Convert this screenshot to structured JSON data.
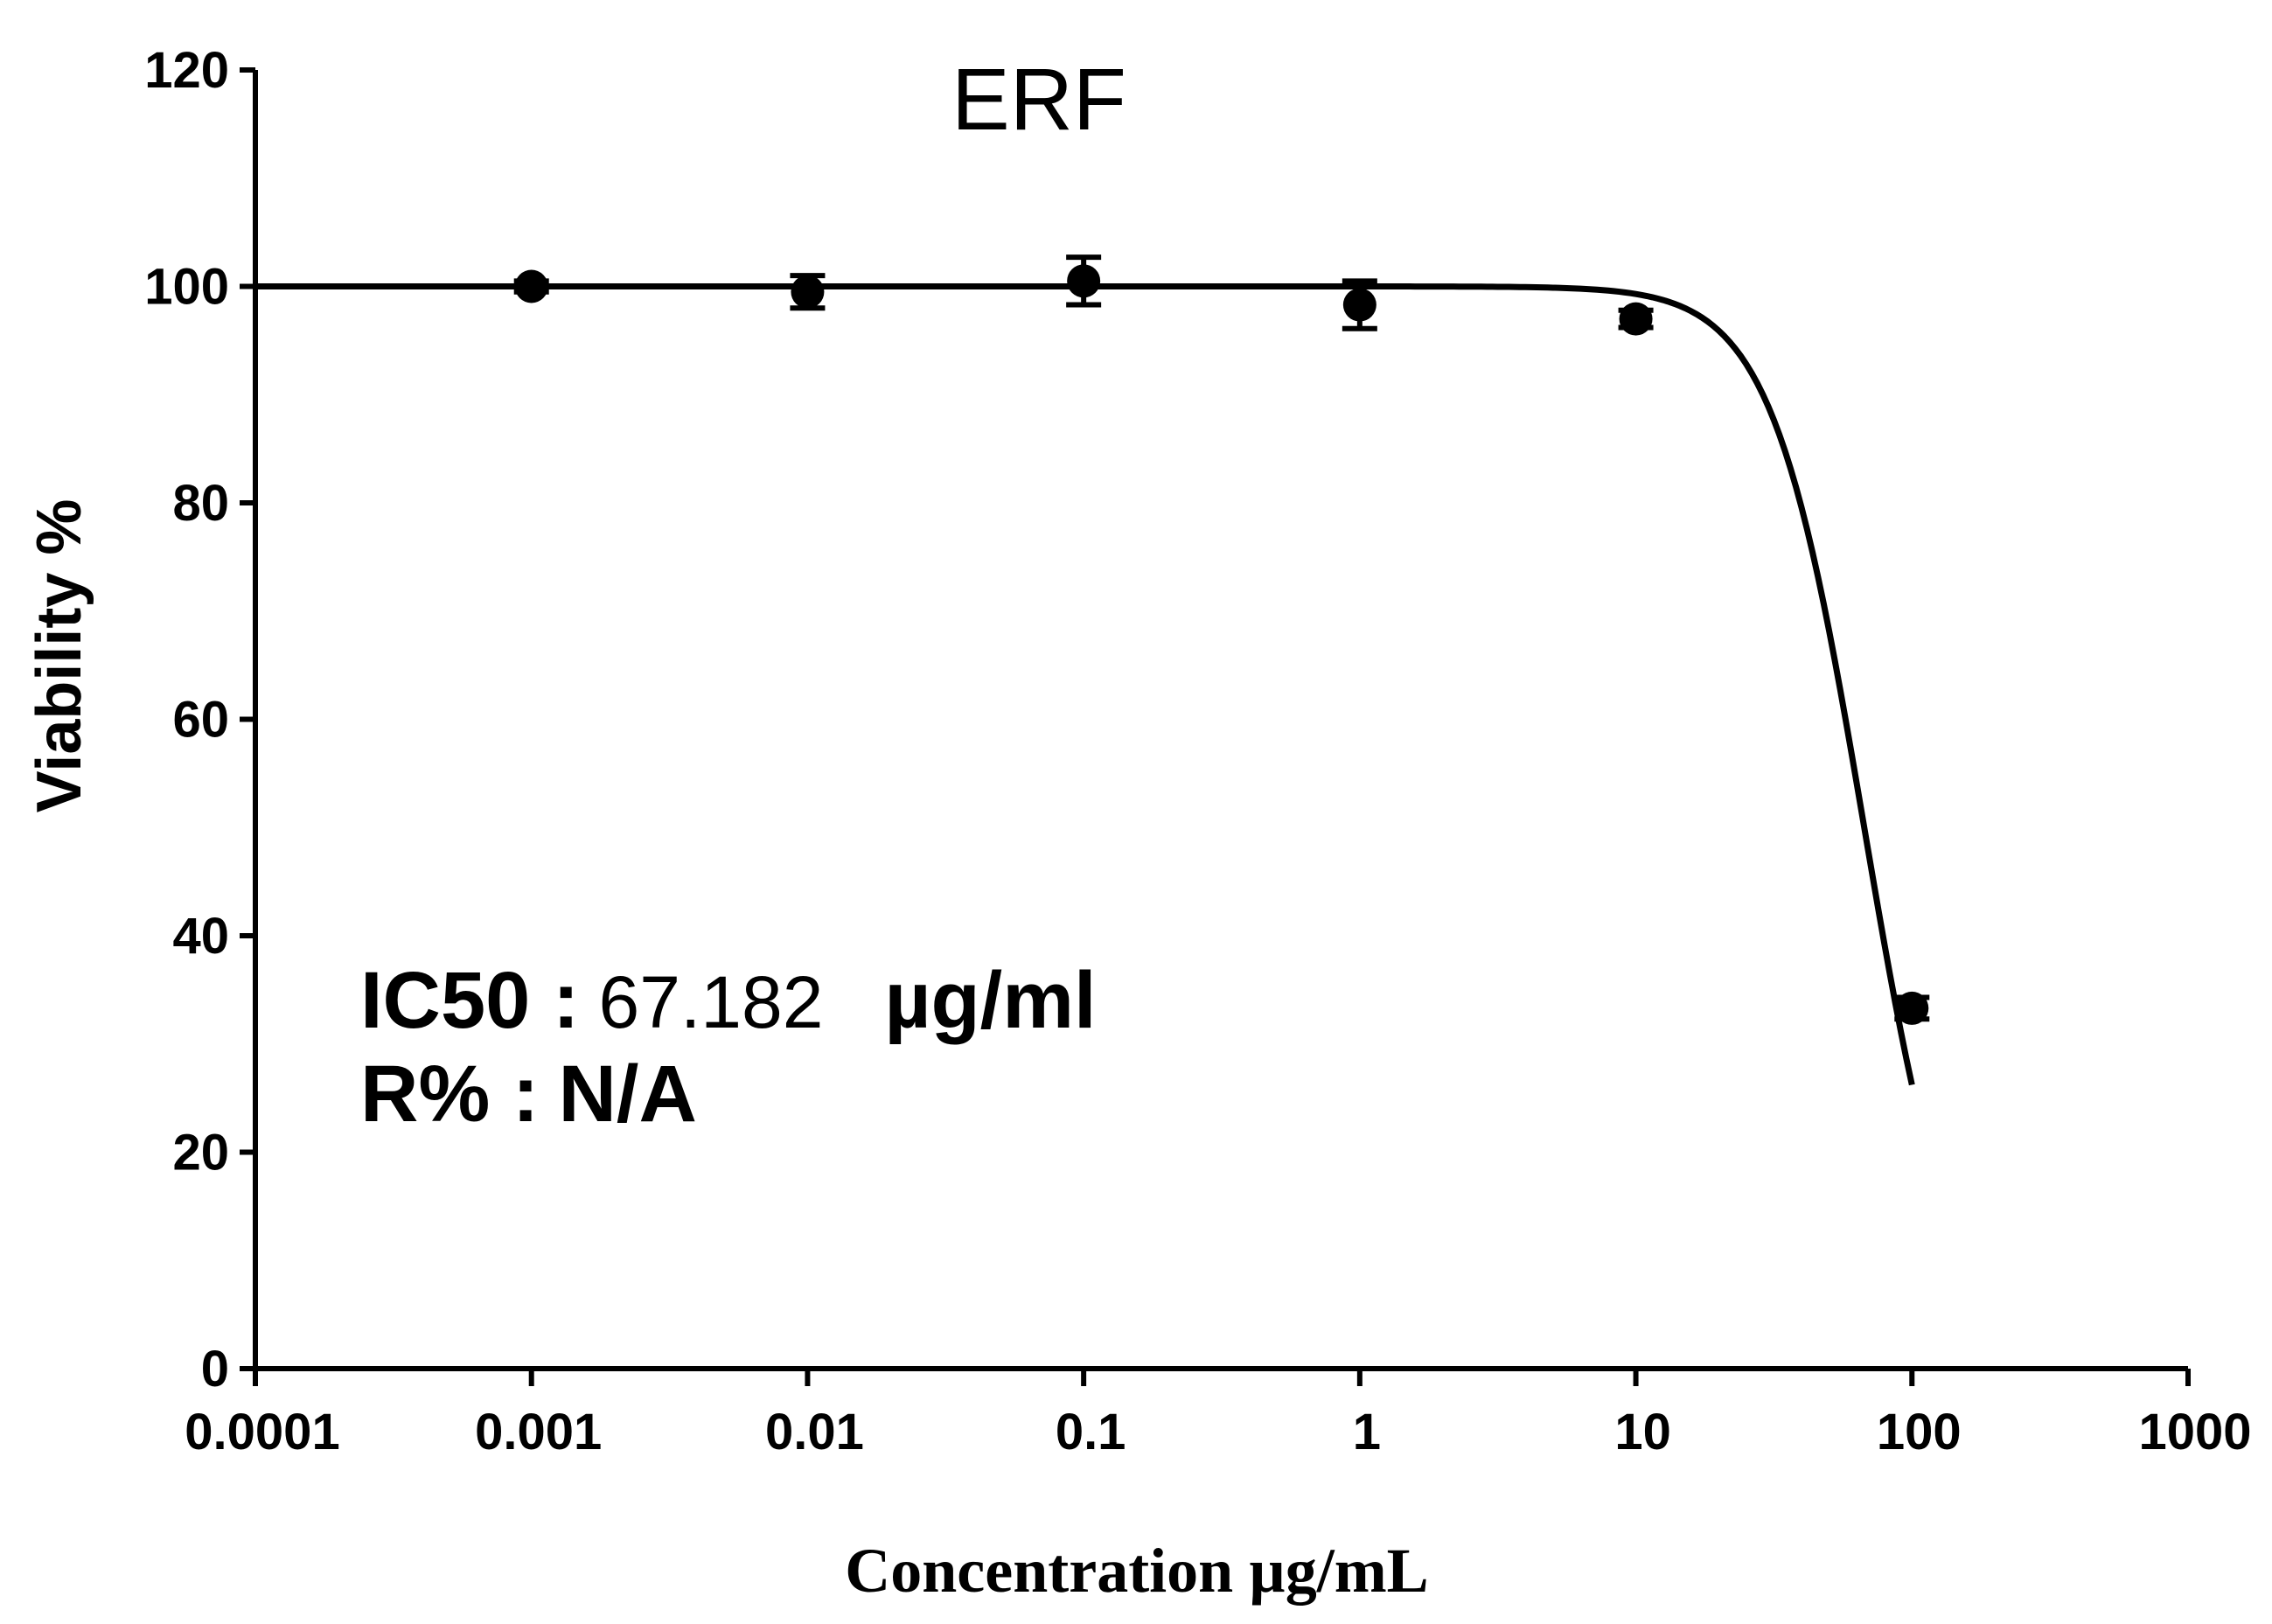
{
  "chart_data": {
    "type": "scatter",
    "title": "ERF",
    "xlabel": "Concentration µg/mL",
    "ylabel": "Viability %",
    "xscale": "log",
    "xlim": [
      0.0001,
      1000
    ],
    "ylim": [
      0,
      120
    ],
    "x_ticks": [
      0.0001,
      0.001,
      0.01,
      0.1,
      1,
      10,
      100,
      1000
    ],
    "x_tick_labels": [
      "0.0001",
      "0.001",
      "0.01",
      "0.1",
      "1",
      "10",
      "100",
      "1000"
    ],
    "y_ticks": [
      0,
      20,
      40,
      60,
      80,
      100,
      120
    ],
    "y_tick_labels": [
      "0",
      "20",
      "40",
      "60",
      "80",
      "100",
      "120"
    ],
    "grid": false,
    "series": [
      {
        "name": "ERF",
        "x": [
          0.001,
          0.01,
          0.1,
          1,
          10,
          100
        ],
        "y": [
          100,
          99.5,
          100.5,
          98.3,
          97,
          33.3
        ],
        "error": [
          0.5,
          1.5,
          2.2,
          2.2,
          0.8,
          1.0
        ]
      }
    ],
    "fit_curve": {
      "model": "four-parameter logistic",
      "top": 100,
      "bottom": 0,
      "ic50": 67.182,
      "hill": 2.6,
      "x_range": [
        0.0001,
        100
      ]
    },
    "annotations": {
      "ic50_label": "IC50 :",
      "ic50_value": "67.182",
      "ic50_unit": "µg/ml",
      "r_label": "R% :",
      "r_value": "N/A"
    }
  }
}
